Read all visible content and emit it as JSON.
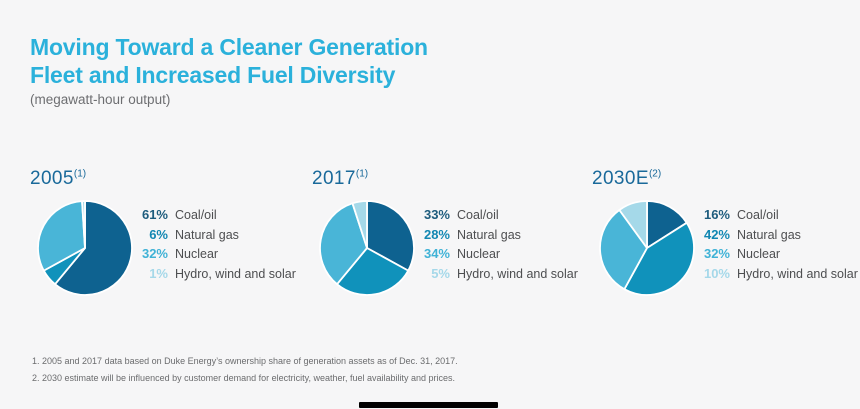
{
  "header": {
    "title": "Moving Toward a Cleaner Generation\nFleet and Increased Fuel Diversity",
    "subtitle": "(megawatt-hour output)"
  },
  "palette": {
    "title_color": "#2BB1DB",
    "heading_color": "#19699A",
    "label_color": "#4D4E50",
    "footnote_color": "#6B6C6E",
    "background": "#F6F6F7",
    "slice_colors": [
      "#0E6290",
      "#1092BB",
      "#49B5D7",
      "#A5D9E9"
    ],
    "pct_text_colors": [
      "#1D5C7D",
      "#1287B2",
      "#3FB2D6",
      "#A5D8E9"
    ],
    "bottom_bar_color": "#000000"
  },
  "chart_data": [
    {
      "type": "pie",
      "title": "2005",
      "note": "(1)",
      "legend_position": "right",
      "start_angle_deg": 0,
      "direction": "clockwise",
      "categories": [
        "Coal/oil",
        "Natural gas",
        "Nuclear",
        "Hydro, wind and solar"
      ],
      "values": [
        61,
        6,
        32,
        1
      ],
      "pct_labels": [
        "61%",
        "6%",
        "32%",
        "1%"
      ],
      "unit": "%"
    },
    {
      "type": "pie",
      "title": "2017",
      "note": "(1)",
      "legend_position": "right",
      "start_angle_deg": 0,
      "direction": "clockwise",
      "categories": [
        "Coal/oil",
        "Natural gas",
        "Nuclear",
        "Hydro, wind and solar"
      ],
      "values": [
        33,
        28,
        34,
        5
      ],
      "pct_labels": [
        "33%",
        "28%",
        "34%",
        "5%"
      ],
      "unit": "%"
    },
    {
      "type": "pie",
      "title": "2030E",
      "note": "(2)",
      "legend_position": "right",
      "start_angle_deg": 0,
      "direction": "clockwise",
      "categories": [
        "Coal/oil",
        "Natural gas",
        "Nuclear",
        "Hydro, wind and solar"
      ],
      "values": [
        16,
        42,
        32,
        10
      ],
      "pct_labels": [
        "16%",
        "42%",
        "32%",
        "10%"
      ],
      "unit": "%"
    }
  ],
  "footnotes": [
    "1. 2005 and 2017 data based on Duke Energy’s ownership share of generation assets as of Dec. 31, 2017.",
    "2. 2030 estimate will be influenced by customer demand for electricity, weather, fuel availability and prices."
  ]
}
